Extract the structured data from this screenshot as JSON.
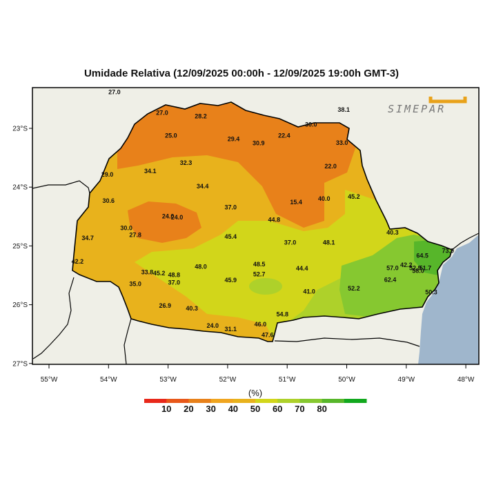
{
  "title": "Umidade Relativa (12/09/2025 00:00h - 12/09/2025 19:00h GMT-3)",
  "logo_text": "SIMEPAR",
  "colors": {
    "ocean": "#9fb6cc",
    "land": "#efefe7",
    "orange_dark": "#e8811a",
    "orange": "#f0a51f",
    "gold": "#e8b21c",
    "yellow_green": "#d2d61a",
    "lime": "#aed12a",
    "green": "#86c830",
    "green_dark": "#57b62a",
    "logo_orange": "#e8a21a"
  },
  "axes": {
    "lat_ticks": [
      "23°S",
      "24°S",
      "25°S",
      "26°S",
      "27°S"
    ],
    "lon_ticks": [
      "55°W",
      "54°W",
      "53°W",
      "52°W",
      "51°W",
      "50°W",
      "49°W",
      "48°W"
    ]
  },
  "legend": {
    "unit": "(%)",
    "labels": [
      "10",
      "20",
      "30",
      "40",
      "50",
      "60",
      "70",
      "80"
    ],
    "colors": [
      "#e8281a",
      "#e8581a",
      "#e8811a",
      "#f0a51f",
      "#e8b21c",
      "#d2d61a",
      "#aed12a",
      "#86c830",
      "#57b62a",
      "#12a81e"
    ]
  },
  "stations": [
    {
      "v": "27.0",
      "lon": -53.1,
      "lat": -22.77
    },
    {
      "v": "27.0",
      "lon": -53.9,
      "lat": -22.42
    },
    {
      "v": "28.2",
      "lon": -52.45,
      "lat": -22.83
    },
    {
      "v": "25.0",
      "lon": -52.95,
      "lat": -23.16
    },
    {
      "v": "29.4",
      "lon": -51.9,
      "lat": -23.22
    },
    {
      "v": "30.9",
      "lon": -51.48,
      "lat": -23.29
    },
    {
      "v": "22.4",
      "lon": -51.05,
      "lat": -23.16
    },
    {
      "v": "30.0",
      "lon": -50.6,
      "lat": -22.97
    },
    {
      "v": "33.0",
      "lon": -50.08,
      "lat": -23.28
    },
    {
      "v": "38.1",
      "lon": -50.05,
      "lat": -22.72
    },
    {
      "v": "29.0",
      "lon": -54.02,
      "lat": -23.82
    },
    {
      "v": "34.1",
      "lon": -53.3,
      "lat": -23.76
    },
    {
      "v": "32.3",
      "lon": -52.7,
      "lat": -23.62
    },
    {
      "v": "22.0",
      "lon": -50.27,
      "lat": -23.68
    },
    {
      "v": "34.4",
      "lon": -52.42,
      "lat": -24.02
    },
    {
      "v": "30.6",
      "lon": -54.0,
      "lat": -24.27
    },
    {
      "v": "40.0",
      "lon": -50.38,
      "lat": -24.23
    },
    {
      "v": "15.4",
      "lon": -50.85,
      "lat": -24.29
    },
    {
      "v": "45.2",
      "lon": -49.88,
      "lat": -24.2
    },
    {
      "v": "37.0",
      "lon": -51.95,
      "lat": -24.38
    },
    {
      "v": "24.0",
      "lon": -53.0,
      "lat": -24.53
    },
    {
      "v": "24.0",
      "lon": -52.85,
      "lat": -24.55
    },
    {
      "v": "44.8",
      "lon": -51.22,
      "lat": -24.59
    },
    {
      "v": "30.0",
      "lon": -53.7,
      "lat": -24.73
    },
    {
      "v": "27.8",
      "lon": -53.55,
      "lat": -24.85
    },
    {
      "v": "34.7",
      "lon": -54.35,
      "lat": -24.9
    },
    {
      "v": "45.4",
      "lon": -51.95,
      "lat": -24.88
    },
    {
      "v": "37.0",
      "lon": -50.95,
      "lat": -24.98
    },
    {
      "v": "48.1",
      "lon": -50.3,
      "lat": -24.98
    },
    {
      "v": "40.3",
      "lon": -49.23,
      "lat": -24.81
    },
    {
      "v": "64.5",
      "lon": -48.73,
      "lat": -25.2
    },
    {
      "v": "73.9",
      "lon": -48.3,
      "lat": -25.12
    },
    {
      "v": "42.2",
      "lon": -54.52,
      "lat": -25.3
    },
    {
      "v": "48.5",
      "lon": -51.47,
      "lat": -25.35
    },
    {
      "v": "44.4",
      "lon": -50.75,
      "lat": -25.42
    },
    {
      "v": "48.0",
      "lon": -52.45,
      "lat": -25.39
    },
    {
      "v": "42.2",
      "lon": -49.0,
      "lat": -25.36
    },
    {
      "v": "57.0",
      "lon": -49.23,
      "lat": -25.41
    },
    {
      "v": "52.9",
      "lon": -48.85,
      "lat": -25.41
    },
    {
      "v": "51.7",
      "lon": -48.68,
      "lat": -25.41
    },
    {
      "v": "58.0",
      "lon": -48.8,
      "lat": -25.46
    },
    {
      "v": "33.8",
      "lon": -53.35,
      "lat": -25.48
    },
    {
      "v": "45.2",
      "lon": -53.15,
      "lat": -25.5
    },
    {
      "v": "48.8",
      "lon": -52.9,
      "lat": -25.53
    },
    {
      "v": "52.7",
      "lon": -51.47,
      "lat": -25.52
    },
    {
      "v": "37.0",
      "lon": -52.9,
      "lat": -25.66
    },
    {
      "v": "35.0",
      "lon": -53.55,
      "lat": -25.68
    },
    {
      "v": "45.9",
      "lon": -51.95,
      "lat": -25.62
    },
    {
      "v": "62.4",
      "lon": -49.27,
      "lat": -25.61
    },
    {
      "v": "52.2",
      "lon": -49.88,
      "lat": -25.76
    },
    {
      "v": "41.0",
      "lon": -50.63,
      "lat": -25.81
    },
    {
      "v": "50.3",
      "lon": -48.58,
      "lat": -25.82
    },
    {
      "v": "26.9",
      "lon": -53.05,
      "lat": -26.05
    },
    {
      "v": "40.3",
      "lon": -52.6,
      "lat": -26.1
    },
    {
      "v": "54.8",
      "lon": -51.08,
      "lat": -26.2
    },
    {
      "v": "24.0",
      "lon": -52.25,
      "lat": -26.39
    },
    {
      "v": "31.1",
      "lon": -51.95,
      "lat": -26.45
    },
    {
      "v": "46.0",
      "lon": -51.45,
      "lat": -26.37
    },
    {
      "v": "47.6",
      "lon": -51.33,
      "lat": -26.55
    }
  ]
}
